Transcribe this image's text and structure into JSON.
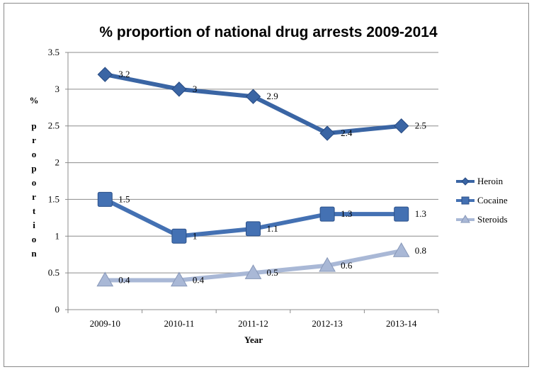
{
  "chart_data": {
    "type": "line",
    "title": "% proportion of national drug arrests 2009-2014",
    "xlabel": "Year",
    "ylabel": "% proportion",
    "categories": [
      "2009-10",
      "2010-11",
      "2011-12",
      "2012-13",
      "2013-14"
    ],
    "ylim": [
      0,
      3.5
    ],
    "yticks": [
      "0",
      "0.5",
      "1",
      "1.5",
      "2",
      "2.5",
      "3",
      "3.5"
    ],
    "grid": true,
    "legend_position": "right",
    "series": [
      {
        "name": "Heroin",
        "values": [
          3.2,
          3,
          2.9,
          2.4,
          2.5
        ],
        "labels": [
          "3.2",
          "3",
          "2.9",
          "2.4",
          "2.5"
        ],
        "color": "#3a65a4",
        "marker": "diamond"
      },
      {
        "name": "Cocaine",
        "values": [
          1.5,
          1,
          1.1,
          1.3,
          1.3
        ],
        "labels": [
          "1.5",
          "1",
          "1.1",
          "1.3",
          "1.3"
        ],
        "color": "#4471b3",
        "marker": "square"
      },
      {
        "name": "Steroids",
        "values": [
          0.4,
          0.4,
          0.5,
          0.6,
          0.8
        ],
        "labels": [
          "0.4",
          "0.4",
          "0.5",
          "0.6",
          "0.8"
        ],
        "color": "#a9b8d6",
        "marker": "triangle"
      }
    ]
  }
}
